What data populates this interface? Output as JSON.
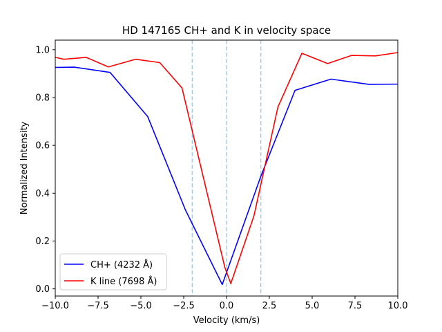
{
  "chart_data": {
    "type": "line",
    "title": "HD 147165 CH+ and K in velocity space",
    "xlabel": "Velocity (km/s)",
    "ylabel": "Normalized Intensity",
    "xlim": [
      -10,
      10
    ],
    "ylim": [
      -0.03,
      1.04
    ],
    "x_ticks": [
      -10,
      -7.5,
      -5,
      -2.5,
      0,
      2.5,
      5,
      7.5,
      10
    ],
    "x_tick_labels": [
      "−10.0",
      "−7.5",
      "−5.0",
      "−2.5",
      "0.0",
      "2.5",
      "5.0",
      "7.5",
      "10.0"
    ],
    "y_ticks": [
      0,
      0.2,
      0.4,
      0.6,
      0.8,
      1.0
    ],
    "y_tick_labels": [
      "0.0",
      "0.2",
      "0.4",
      "0.6",
      "0.8",
      "1.0"
    ],
    "grid": false,
    "legend_position": "lower-left",
    "vertical_lines": {
      "x": [
        -2,
        0,
        2
      ],
      "color": "#a9cbe8",
      "style": "dashed"
    },
    "series": [
      {
        "name": "CH+ (4232 Å)",
        "color": "#0000ff",
        "x": [
          -10,
          -9.8,
          -8.9,
          -6.8,
          -4.6,
          -2.4,
          -0.25,
          2.0,
          4.0,
          6.1,
          8.3,
          10.0
        ],
        "y": [
          0.926,
          0.926,
          0.927,
          0.905,
          0.72,
          0.33,
          0.018,
          0.47,
          0.83,
          0.877,
          0.855,
          0.856
        ]
      },
      {
        "name": "K line (7698 Å)",
        "color": "#ff0000",
        "x": [
          -10,
          -9.5,
          -8.2,
          -6.9,
          -5.3,
          -3.9,
          -2.6,
          -0.1,
          0.25,
          1.6,
          3.0,
          4.4,
          5.9,
          7.3,
          8.7,
          10.0
        ],
        "y": [
          0.968,
          0.96,
          0.968,
          0.928,
          0.96,
          0.946,
          0.84,
          0.09,
          0.022,
          0.305,
          0.76,
          0.985,
          0.942,
          0.976,
          0.974,
          0.988
        ]
      }
    ]
  }
}
